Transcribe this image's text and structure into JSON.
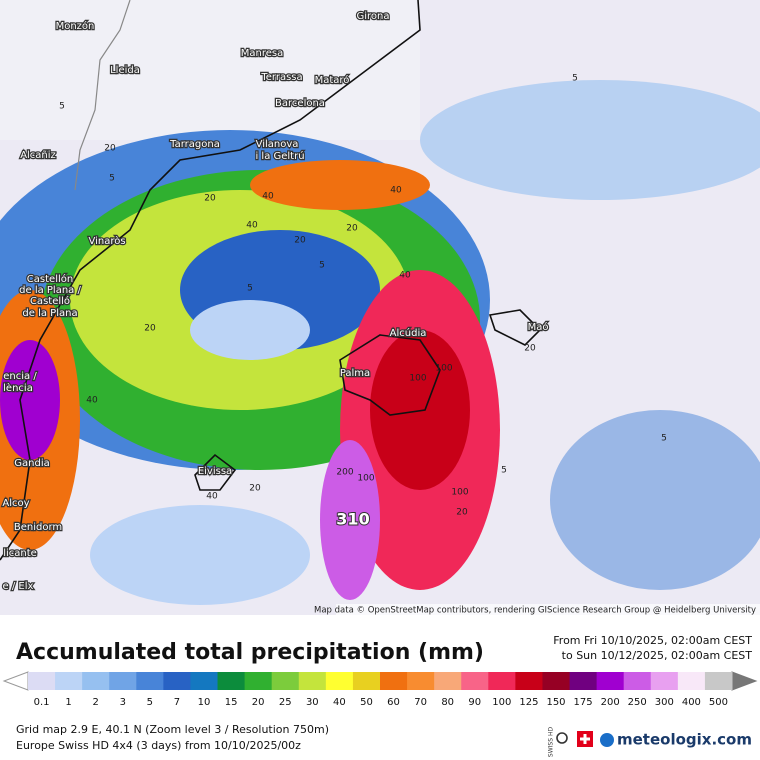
{
  "map": {
    "places": [
      "Monzón",
      "Girona",
      "Manresa",
      "Lleida",
      "Terrassa",
      "Mataró",
      "Barcelona",
      "Tarragona",
      "Vilanova",
      "i la Geltrú",
      "Alcañiz",
      "Vinaròs",
      "Castellón",
      "de la Plana /",
      "Castelló",
      "de la Plana",
      "encia /",
      "lència",
      "Gandia",
      "Alcoy",
      "Benidorm",
      "licante",
      "e / Elx",
      "Eivissa",
      "Palma",
      "Alcúdia",
      "Maó"
    ],
    "contour_labels": [
      5,
      5,
      5,
      20,
      20,
      40,
      40,
      20,
      5,
      40,
      20,
      5,
      100,
      100,
      40,
      20,
      40,
      200,
      100,
      100,
      20,
      5,
      5,
      20,
      40,
      20
    ],
    "max_label": 310,
    "attribution": "Map data © OpenStreetMap contributors, rendering GIScience Research Group @ Heidelberg University"
  },
  "legend": {
    "title": "Accumulated total precipitation (mm)",
    "from": "From Fri 10/10/2025, 02:00am CEST",
    "to": "to Sun 10/12/2025, 02:00am CEST",
    "scale_values": [
      0.1,
      1,
      2,
      3,
      5,
      7,
      10,
      15,
      20,
      25,
      30,
      40,
      50,
      60,
      70,
      80,
      90,
      100,
      125,
      150,
      175,
      200,
      250,
      300,
      400,
      500
    ],
    "scale_colors": [
      "#dcdcf4",
      "#bcd4f6",
      "#96c0f0",
      "#70a4e6",
      "#4884d8",
      "#2862c4",
      "#1478c0",
      "#0c8c3c",
      "#30b030",
      "#7ccc3c",
      "#c4e43c",
      "#ffff30",
      "#e8d020",
      "#f07010",
      "#f88c30",
      "#f8a878",
      "#f86488",
      "#f02858",
      "#c80018",
      "#960024",
      "#700080",
      "#a000d0",
      "#cc5ce6",
      "#e8a0f0",
      "#f8e8f8",
      "#c8c8c8"
    ]
  },
  "footer": {
    "line1": "Grid map 2.9 E, 40.1 N (Zoom level 3 / Resolution 750m)",
    "line2": "Europe Swiss HD 4x4 (3 days) from 10/10/2025/00z",
    "badge": "SWISS HD",
    "brand": "meteologix.com"
  }
}
